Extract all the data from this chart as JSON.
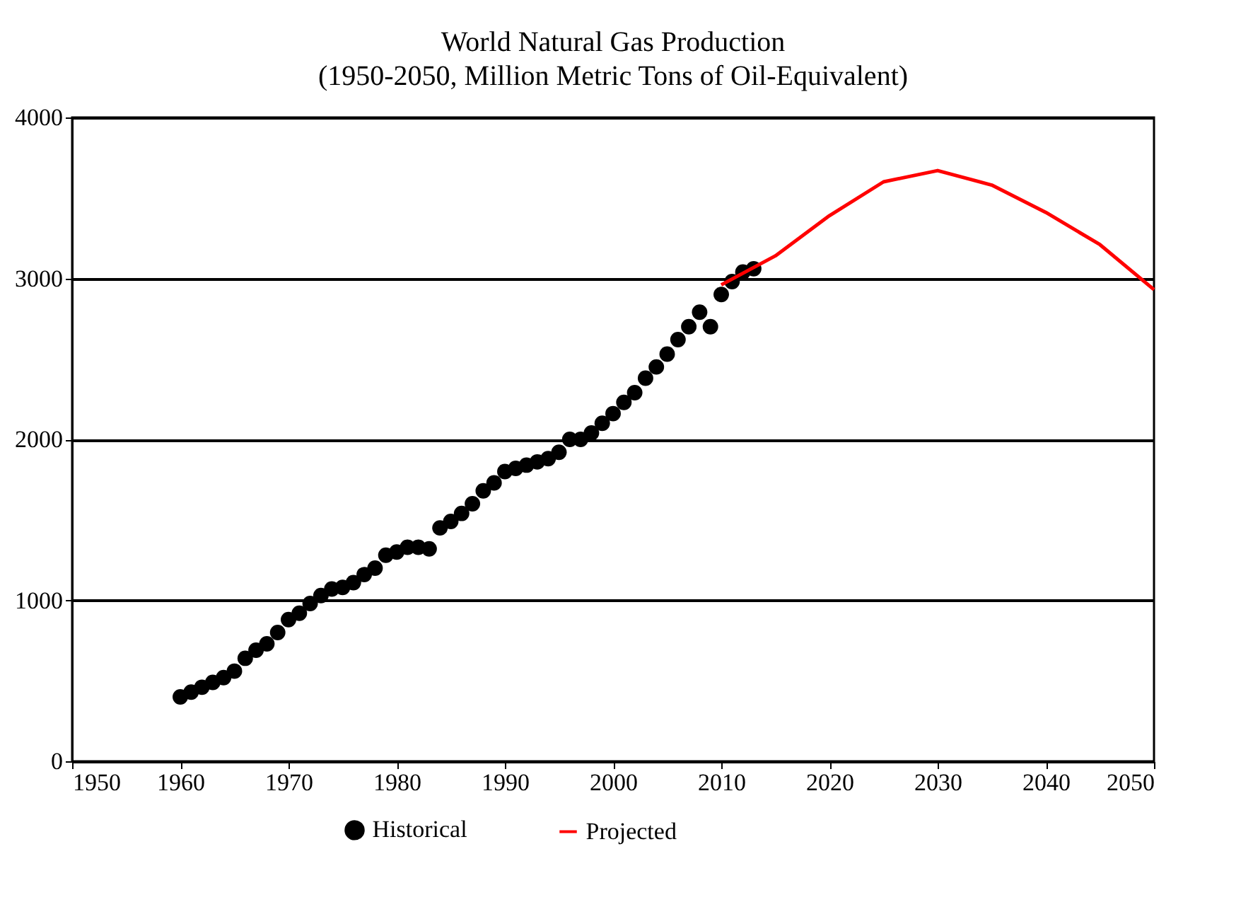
{
  "chart_data": {
    "type": "scatter",
    "title": "World Natural Gas Production",
    "subtitle": "(1950-2050, Million Metric Tons of Oil-Equivalent)",
    "xlim": [
      1950,
      2050
    ],
    "xticks": [
      1950,
      1960,
      1970,
      1980,
      1990,
      2000,
      2010,
      2020,
      2030,
      2040,
      2050
    ],
    "ylim": [
      0,
      4000
    ],
    "yticks": [
      0,
      1000,
      2000,
      3000,
      4000
    ],
    "grid": "y",
    "legend": "bottom",
    "series": [
      {
        "name": "Historical",
        "marker": "circle",
        "color": "#000000",
        "x": [
          1960,
          1961,
          1962,
          1963,
          1964,
          1965,
          1966,
          1967,
          1968,
          1969,
          1970,
          1971,
          1972,
          1973,
          1974,
          1975,
          1976,
          1977,
          1978,
          1979,
          1980,
          1981,
          1982,
          1983,
          1984,
          1985,
          1986,
          1987,
          1988,
          1989,
          1990,
          1991,
          1992,
          1993,
          1994,
          1995,
          1996,
          1997,
          1998,
          1999,
          2000,
          2001,
          2002,
          2003,
          2004,
          2005,
          2006,
          2007,
          2008,
          2009,
          2010,
          2011,
          2012,
          2013
        ],
        "values": [
          400,
          430,
          460,
          490,
          520,
          560,
          640,
          690,
          730,
          800,
          880,
          920,
          980,
          1030,
          1070,
          1080,
          1110,
          1160,
          1200,
          1280,
          1300,
          1330,
          1330,
          1320,
          1450,
          1490,
          1540,
          1600,
          1680,
          1730,
          1800,
          1820,
          1840,
          1860,
          1880,
          1920,
          2000,
          2000,
          2040,
          2100,
          2160,
          2230,
          2290,
          2380,
          2450,
          2530,
          2620,
          2700,
          2790,
          2700,
          2900,
          2980,
          3040,
          3060
        ]
      },
      {
        "name": "Projected",
        "type": "line",
        "color": "#ff0000",
        "x": [
          2010,
          2015,
          2020,
          2025,
          2030,
          2035,
          2040,
          2045,
          2050
        ],
        "values": [
          2960,
          3140,
          3390,
          3600,
          3670,
          3580,
          3410,
          3210,
          2930
        ]
      }
    ]
  }
}
